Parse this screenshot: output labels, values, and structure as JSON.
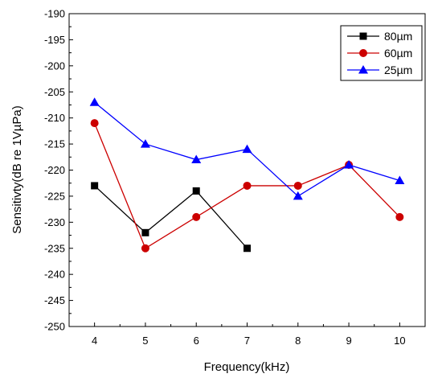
{
  "chart_data": {
    "type": "line",
    "title": "",
    "xlabel": "Frequency(kHz)",
    "ylabel": "Sensitivty(dB re 1VµPa)",
    "xlim": [
      3.5,
      10.5
    ],
    "ylim": [
      -250,
      -190
    ],
    "x_ticks": [
      4,
      5,
      6,
      7,
      8,
      9,
      10
    ],
    "y_ticks": [
      -190,
      -195,
      -200,
      -205,
      -210,
      -215,
      -220,
      -225,
      -230,
      -235,
      -240,
      -245,
      -250
    ],
    "grid": false,
    "legend_position": "top-right",
    "series": [
      {
        "name": "80µm",
        "color": "#000000",
        "marker": "square",
        "x": [
          4,
          5,
          6,
          7
        ],
        "y": [
          -223,
          -232,
          -224,
          -235
        ]
      },
      {
        "name": "60µm",
        "color": "#cc0000",
        "marker": "circle",
        "x": [
          4,
          5,
          6,
          7,
          8,
          9,
          10
        ],
        "y": [
          -211,
          -235,
          -229,
          -223,
          -223,
          -219,
          -229
        ]
      },
      {
        "name": "25µm",
        "color": "#0000ff",
        "marker": "triangle",
        "x": [
          4,
          5,
          6,
          7,
          8,
          9,
          10
        ],
        "y": [
          -207,
          -215,
          -218,
          -216,
          -225,
          -219,
          -222
        ]
      }
    ]
  }
}
